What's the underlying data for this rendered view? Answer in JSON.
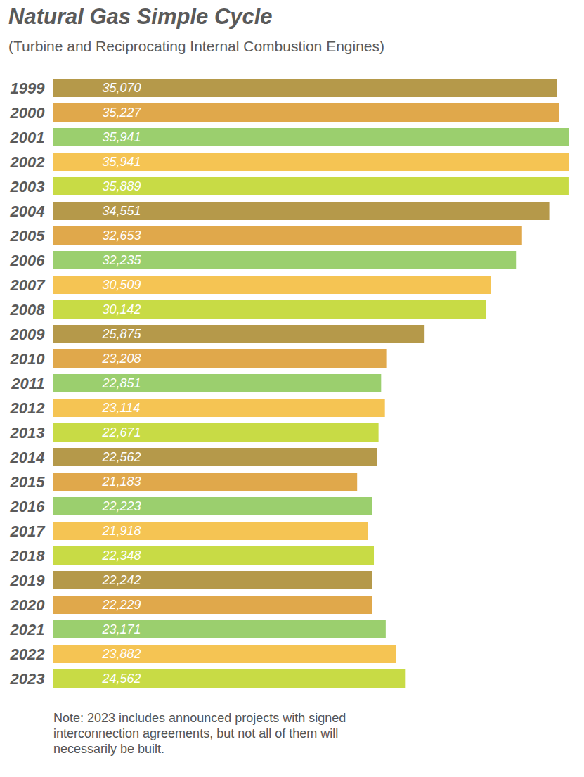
{
  "chart_data": {
    "type": "bar",
    "orientation": "horizontal",
    "title": "Natural Gas Simple Cycle",
    "subtitle": "(Turbine and Reciprocating Internal Combustion Engines)",
    "note": "Note: 2023 includes announced projects with signed interconnection agreements, but not all of them will necessarily be built.",
    "categories": [
      "1999",
      "2000",
      "2001",
      "2002",
      "2003",
      "2004",
      "2005",
      "2006",
      "2007",
      "2008",
      "2009",
      "2010",
      "2011",
      "2012",
      "2013",
      "2014",
      "2015",
      "2016",
      "2017",
      "2018",
      "2019",
      "2020",
      "2021",
      "2022",
      "2023"
    ],
    "values": [
      35070,
      35227,
      35941,
      35941,
      35889,
      34551,
      32653,
      32235,
      30509,
      30142,
      25875,
      23208,
      22851,
      23114,
      22671,
      22562,
      21183,
      22223,
      21918,
      22348,
      22242,
      22229,
      23171,
      23882,
      24562
    ],
    "value_labels": [
      "35,070",
      "35,227",
      "35,941",
      "35,941",
      "35,889",
      "34,551",
      "32,653",
      "32,235",
      "30,509",
      "30,142",
      "25,875",
      "23,208",
      "22,851",
      "23,114",
      "22,671",
      "22,562",
      "21,183",
      "22,223",
      "21,918",
      "22,348",
      "22,242",
      "22,229",
      "23,171",
      "23,882",
      "24,562"
    ],
    "colors": [
      "#b5994a",
      "#e0a84b",
      "#9bcf6e",
      "#f5c453",
      "#c8db45",
      "#b5994a",
      "#e0a84b",
      "#9bcf6e",
      "#f5c453",
      "#c8db45",
      "#b5994a",
      "#e0a84b",
      "#9bcf6e",
      "#f5c453",
      "#c8db45",
      "#b5994a",
      "#e0a84b",
      "#9bcf6e",
      "#f5c453",
      "#c8db45",
      "#b5994a",
      "#e0a84b",
      "#9bcf6e",
      "#f5c453",
      "#c8db45"
    ],
    "xlim": [
      0,
      35941
    ],
    "data_labels": true,
    "tick_labels": "y",
    "grid": false
  }
}
